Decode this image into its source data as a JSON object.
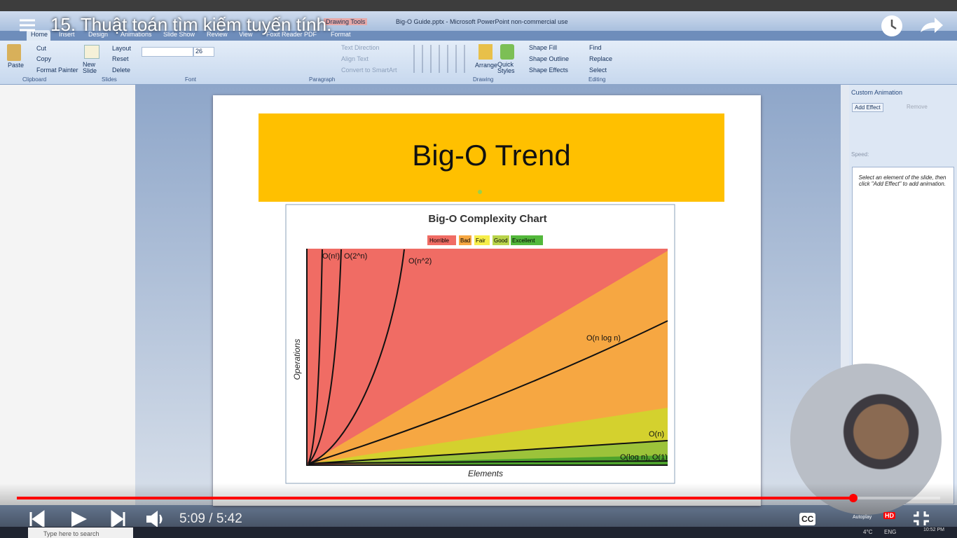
{
  "video": {
    "title": "15. Thuật toán tìm kiếm tuyến tính.",
    "time": "5:09 / 5:42"
  },
  "window": {
    "title": "Big-O Guide.pptx - Microsoft PowerPoint non-commercial use",
    "context_tab": "Drawing Tools"
  },
  "ribbon": {
    "tabs": [
      "Home",
      "Insert",
      "Design",
      "Animations",
      "Slide Show",
      "Review",
      "View",
      "Foxit Reader PDF",
      "Format"
    ],
    "groups": [
      "Clipboard",
      "Slides",
      "Font",
      "Paragraph",
      "Drawing",
      "Editing"
    ],
    "clipboard": [
      "Paste",
      "Cut",
      "Copy",
      "Format Painter"
    ],
    "slides": [
      "New Slide",
      "Layout",
      "Reset",
      "Delete"
    ],
    "font_size": "26",
    "paragraph": [
      "Text Direction",
      "Align Text",
      "Convert to SmartArt"
    ],
    "drawing": [
      "Arrange",
      "Quick Styles",
      "Shape Fill",
      "Shape Outline",
      "Shape Effects"
    ],
    "editing": [
      "Find",
      "Replace",
      "Select"
    ]
  },
  "slide": {
    "title": "Big-O Trend",
    "chart": {
      "title": "Big-O Complexity Chart",
      "legend": [
        "Horrible",
        "Bad",
        "Fair",
        "Good",
        "Excellent"
      ],
      "curve_labels": [
        "O(n!)",
        "O(2^n)",
        "O(n^2)",
        "O(n log n)",
        "O(n)",
        "O(log n), O(1)"
      ],
      "x_label": "Elements",
      "y_label": "Operations"
    }
  },
  "animation_pane": {
    "title": "Custom Animation",
    "add_effect": "Add Effect",
    "remove": "Remove",
    "speed": "Speed:",
    "hint": "Select an element of the slide, then click \"Add Effect\" to add animation.",
    "autoplay": "Autoplay"
  },
  "player": {
    "cc": "CC",
    "hd": "HD"
  },
  "taskbar": {
    "search": "Type here to search",
    "weather": "4°C",
    "lang": "ENG",
    "clock": "10:52 PM"
  }
}
